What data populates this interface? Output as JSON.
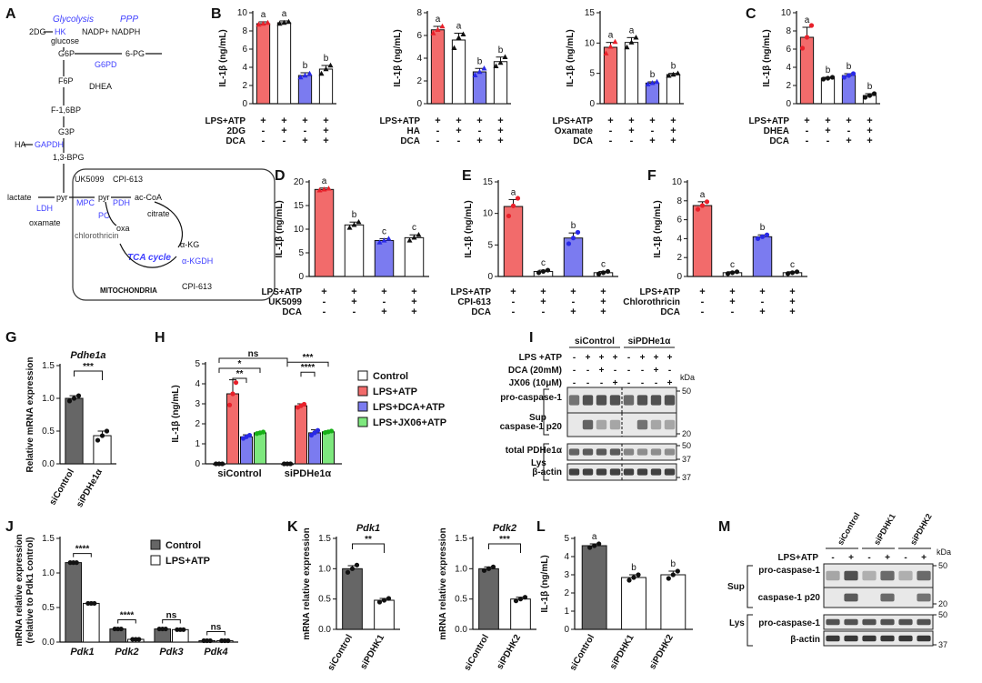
{
  "colors": {
    "red": "#f26b6b",
    "blue": "#7b7bf0",
    "green": "#7ee87e",
    "white": "#ffffff",
    "gray": "#666666",
    "dot_red": "#e8202a",
    "dot_blue": "#2929e6",
    "dot_green": "#16b016",
    "dot_black": "#111111",
    "pathway_blue": "#4040ff"
  },
  "panel_letters": [
    "A",
    "B",
    "C",
    "D",
    "E",
    "F",
    "G",
    "H",
    "I",
    "J",
    "K",
    "L",
    "M"
  ],
  "panelA": {
    "glycolysis": "Glycolysis",
    "ppp": "PPP",
    "items": {
      "twoDG": "2DG",
      "HK": "HK",
      "glucose": "glucose",
      "G6P": "G6P",
      "nadp": "NADP+ NADPH",
      "sixPG": "6-PG",
      "G6PD": "G6PD",
      "DHEA": "DHEA",
      "F6P": "F6P",
      "F16BP": "F-1,6BP",
      "G3P": "G3P",
      "HA": "HA",
      "GAPDH": "GAPDH",
      "BPG": "1,3-BPG",
      "UK5099": "UK5099",
      "CPI613a": "CPI-613",
      "MPC": "MPC",
      "PDH": "PDH",
      "lactate": "lactate",
      "pyr1": "pyr",
      "pyr2": "pyr",
      "acCoA": "ac-CoA",
      "LDH": "LDH",
      "oxamate": "oxamate",
      "PC": "PC",
      "citrate": "citrate",
      "oxa": "oxa",
      "chlorothricin": "chlorothricin",
      "tca": "TCA cycle",
      "aKG": "α-KG",
      "aKGDH": "α-KGDH",
      "CPI613b": "CPI-613",
      "mito": "MITOCHONDRIA"
    }
  },
  "chart_data": [
    {
      "panel": "B1",
      "type": "bar",
      "ylabel": "IL-1β (ng/mL)",
      "yticks": [
        0,
        2,
        4,
        6,
        8,
        10
      ],
      "ylim": [
        0,
        10
      ],
      "row_labels": [
        "LPS+ATP",
        "2DG",
        "DCA"
      ],
      "signs": [
        [
          "+",
          "+",
          "+",
          "+"
        ],
        [
          "-",
          "+",
          "-",
          "+"
        ],
        [
          "-",
          "-",
          "+",
          "+"
        ]
      ],
      "values": [
        8.8,
        8.9,
        3.1,
        3.8
      ],
      "errors": [
        0.2,
        0.2,
        0.3,
        0.4
      ],
      "colors": [
        "red",
        "white",
        "blue",
        "white"
      ],
      "letters": [
        "a",
        "a",
        "b",
        "b"
      ],
      "points": [
        [
          8.7,
          8.8,
          8.9
        ],
        [
          8.8,
          8.9,
          9.0
        ],
        [
          2.9,
          3.1,
          3.3
        ],
        [
          3.3,
          3.8,
          4.2
        ]
      ],
      "marker": "tri"
    },
    {
      "panel": "B2",
      "type": "bar",
      "ylabel": "IL-1β (ng/mL)",
      "yticks": [
        0,
        2,
        4,
        6,
        8
      ],
      "ylim": [
        0,
        8
      ],
      "row_labels": [
        "LPS+ATP",
        "HA",
        "DCA"
      ],
      "signs": [
        [
          "+",
          "+",
          "+",
          "+"
        ],
        [
          "-",
          "+",
          "-",
          "+"
        ],
        [
          "-",
          "-",
          "+",
          "+"
        ]
      ],
      "values": [
        6.5,
        5.6,
        2.8,
        3.7
      ],
      "errors": [
        0.3,
        0.6,
        0.3,
        0.4
      ],
      "colors": [
        "red",
        "white",
        "blue",
        "white"
      ],
      "letters": [
        "a",
        "a",
        "b",
        "b"
      ],
      "points": [
        [
          6.2,
          6.5,
          6.8
        ],
        [
          4.9,
          5.8,
          6.1
        ],
        [
          2.5,
          2.8,
          3.1
        ],
        [
          3.3,
          3.6,
          4.1
        ]
      ],
      "marker": "tri"
    },
    {
      "panel": "B3",
      "type": "bar",
      "ylabel": "IL-1β (ng/mL)",
      "yticks": [
        0,
        5,
        10,
        15
      ],
      "ylim": [
        0,
        15
      ],
      "row_labels": [
        "LPS+ATP",
        "Oxamate",
        "DCA"
      ],
      "signs": [
        [
          "+",
          "+",
          "+",
          "+"
        ],
        [
          "-",
          "+",
          "-",
          "+"
        ],
        [
          "-",
          "-",
          "+",
          "+"
        ]
      ],
      "values": [
        9.3,
        10.1,
        3.4,
        4.8
      ],
      "errors": [
        0.8,
        0.8,
        0.2,
        0.2
      ],
      "colors": [
        "red",
        "white",
        "blue",
        "white"
      ],
      "letters": [
        "a",
        "a",
        "b",
        "b"
      ],
      "points": [
        [
          8.3,
          9.4,
          10.2
        ],
        [
          9.3,
          10.1,
          10.9
        ],
        [
          3.2,
          3.4,
          3.6
        ],
        [
          4.6,
          4.8,
          5.0
        ]
      ],
      "marker": "tri"
    },
    {
      "panel": "C",
      "type": "bar",
      "ylabel": "IL-1β (ng/mL)",
      "yticks": [
        0,
        2,
        4,
        6,
        8,
        10
      ],
      "ylim": [
        0,
        10
      ],
      "row_labels": [
        "LPS+ATP",
        "DHEA",
        "DCA"
      ],
      "signs": [
        [
          "+",
          "+",
          "+",
          "+"
        ],
        [
          "-",
          "+",
          "-",
          "+"
        ],
        [
          "-",
          "-",
          "+",
          "+"
        ]
      ],
      "values": [
        7.3,
        2.8,
        3.1,
        0.9
      ],
      "errors": [
        1.1,
        0.1,
        0.2,
        0.2
      ],
      "colors": [
        "red",
        "white",
        "blue",
        "white"
      ],
      "letters": [
        "a",
        "b",
        "b",
        "b"
      ],
      "points": [
        [
          6.1,
          7.3,
          8.6
        ],
        [
          2.7,
          2.8,
          2.9
        ],
        [
          2.9,
          3.1,
          3.3
        ],
        [
          0.7,
          0.9,
          1.1
        ]
      ],
      "marker": "dot"
    },
    {
      "panel": "D",
      "type": "bar",
      "ylabel": "IL-1β (ng/mL)",
      "yticks": [
        0,
        5,
        10,
        15,
        20
      ],
      "ylim": [
        0,
        20
      ],
      "row_labels": [
        "LPS+ATP",
        "UK5099",
        "DCA"
      ],
      "signs": [
        [
          "+",
          "+",
          "+",
          "+"
        ],
        [
          "-",
          "+",
          "-",
          "+"
        ],
        [
          "-",
          "-",
          "+",
          "+"
        ]
      ],
      "values": [
        18.4,
        10.9,
        7.6,
        8.2
      ],
      "errors": [
        0.3,
        0.6,
        0.4,
        0.6
      ],
      "colors": [
        "red",
        "white",
        "blue",
        "white"
      ],
      "letters": [
        "a",
        "b",
        "c",
        "c"
      ],
      "points": [
        [
          18.2,
          18.4,
          18.6
        ],
        [
          10.3,
          10.9,
          11.5
        ],
        [
          7.2,
          7.6,
          8.0
        ],
        [
          7.6,
          8.2,
          8.8
        ]
      ],
      "marker": "tri"
    },
    {
      "panel": "E",
      "type": "bar",
      "ylabel": "IL-1β (ng/mL)",
      "yticks": [
        0,
        5,
        10,
        15
      ],
      "ylim": [
        0,
        15
      ],
      "row_labels": [
        "LPS+ATP",
        "CPI-613",
        "DCA"
      ],
      "signs": [
        [
          "+",
          "+",
          "+",
          "+"
        ],
        [
          "-",
          "+",
          "-",
          "+"
        ],
        [
          "-",
          "-",
          "+",
          "+"
        ]
      ],
      "values": [
        11.1,
        0.8,
        6.1,
        0.6
      ],
      "errors": [
        1.1,
        0.2,
        0.8,
        0.2
      ],
      "colors": [
        "red",
        "white",
        "blue",
        "white"
      ],
      "letters": [
        "a",
        "c",
        "b",
        "c"
      ],
      "points": [
        [
          9.6,
          11.2,
          12.4
        ],
        [
          0.6,
          0.8,
          1.0
        ],
        [
          5.2,
          6.1,
          7.0
        ],
        [
          0.4,
          0.6,
          0.8
        ]
      ],
      "marker": "dot"
    },
    {
      "panel": "F",
      "type": "bar",
      "ylabel": "IL-1β (ng/mL)",
      "yticks": [
        0,
        2,
        4,
        6,
        8,
        10
      ],
      "ylim": [
        0,
        10
      ],
      "row_labels": [
        "LPS+ATP",
        "Chlorothricin",
        "DCA"
      ],
      "signs": [
        [
          "+",
          "+",
          "+",
          "+"
        ],
        [
          "-",
          "+",
          "-",
          "+"
        ],
        [
          "-",
          "-",
          "+",
          "+"
        ]
      ],
      "values": [
        7.5,
        0.4,
        4.2,
        0.4
      ],
      "errors": [
        0.4,
        0.1,
        0.2,
        0.1
      ],
      "colors": [
        "red",
        "white",
        "blue",
        "white"
      ],
      "letters": [
        "a",
        "c",
        "b",
        "c"
      ],
      "points": [
        [
          7.1,
          7.5,
          7.9
        ],
        [
          0.3,
          0.4,
          0.5
        ],
        [
          4.0,
          4.2,
          4.4
        ],
        [
          0.3,
          0.4,
          0.5
        ]
      ],
      "marker": "dot"
    },
    {
      "panel": "G",
      "type": "bar",
      "title": "Pdhe1a",
      "ylabel": "Relative mRNA expression",
      "yticks": [
        0.0,
        0.5,
        1.0,
        1.5
      ],
      "ylim": [
        0,
        1.5
      ],
      "categories": [
        "siControl",
        "siPDHe1α"
      ],
      "values": [
        1.0,
        0.43
      ],
      "errors": [
        0.04,
        0.07
      ],
      "colors": [
        "gray",
        "white"
      ],
      "points": [
        [
          0.96,
          1.0,
          1.04
        ],
        [
          0.36,
          0.43,
          0.5
        ]
      ],
      "sig": "***"
    },
    {
      "panel": "H",
      "type": "bar",
      "ylabel": "IL-1β (ng/mL)",
      "yticks": [
        0,
        1,
        2,
        3,
        4,
        5
      ],
      "ylim": [
        0,
        5
      ],
      "categories": [
        "siControl",
        "siPDHe1α"
      ],
      "series": [
        {
          "name": "Control",
          "values": [
            0.0,
            0.0
          ]
        },
        {
          "name": "LPS+ATP",
          "values": [
            3.5,
            2.9
          ]
        },
        {
          "name": "LPS+DCA+ATP",
          "values": [
            1.35,
            1.55
          ]
        },
        {
          "name": "LPS+JX06+ATP",
          "values": [
            1.55,
            1.6
          ]
        }
      ],
      "errors": [
        [
          0,
          0
        ],
        [
          0.7,
          0.1
        ],
        [
          0.1,
          0.15
        ],
        [
          0.05,
          0.05
        ]
      ],
      "sig": [
        "**",
        "*",
        "ns",
        "****",
        "***"
      ]
    },
    {
      "panel": "J",
      "type": "bar",
      "ylabel": "mRNA relative expression",
      "ylabel2": "(relative to Pdk1 control)",
      "yticks": [
        0.0,
        0.5,
        1.0,
        1.5
      ],
      "ylim": [
        0,
        1.5
      ],
      "categories": [
        "Pdk1",
        "Pdk2",
        "Pdk3",
        "Pdk4"
      ],
      "series": [
        {
          "name": "Control",
          "values": [
            1.15,
            0.19,
            0.19,
            0.02
          ]
        },
        {
          "name": "LPS+ATP",
          "values": [
            0.56,
            0.04,
            0.18,
            0.02
          ]
        }
      ],
      "sig": [
        "****",
        "****",
        "ns",
        "ns"
      ]
    },
    {
      "panel": "K1",
      "type": "bar",
      "title": "Pdk1",
      "ylabel": "mRNA relative expression",
      "yticks": [
        0.0,
        0.5,
        1.0,
        1.5
      ],
      "ylim": [
        0,
        1.5
      ],
      "categories": [
        "siControl",
        "siPDHK1"
      ],
      "values": [
        1.0,
        0.48
      ],
      "errors": [
        0.05,
        0.03
      ],
      "colors": [
        "gray",
        "white"
      ],
      "points": [
        [
          0.94,
          1.0,
          1.06
        ],
        [
          0.45,
          0.48,
          0.51
        ]
      ],
      "sig": "**"
    },
    {
      "panel": "K2",
      "type": "bar",
      "title": "Pdk2",
      "ylabel": "mRNA relative expression",
      "yticks": [
        0.0,
        0.5,
        1.0,
        1.5
      ],
      "ylim": [
        0,
        1.5
      ],
      "categories": [
        "siControl",
        "siPDHK2"
      ],
      "values": [
        1.0,
        0.5
      ],
      "errors": [
        0.03,
        0.03
      ],
      "colors": [
        "gray",
        "white"
      ],
      "points": [
        [
          0.97,
          1.0,
          1.03
        ],
        [
          0.47,
          0.5,
          0.53
        ]
      ],
      "sig": "***"
    },
    {
      "panel": "L",
      "type": "bar",
      "ylabel": "IL-1β (ng/mL)",
      "yticks": [
        0,
        1,
        2,
        3,
        4,
        5
      ],
      "ylim": [
        0,
        5
      ],
      "categories": [
        "siControl",
        "siPDHK1",
        "siPDHK2"
      ],
      "values": [
        4.6,
        2.85,
        3.0
      ],
      "errors": [
        0.1,
        0.15,
        0.2
      ],
      "colors": [
        "gray",
        "white",
        "white"
      ],
      "letters": [
        "a",
        "b",
        "b"
      ],
      "points": [
        [
          4.5,
          4.6,
          4.7
        ],
        [
          2.7,
          2.85,
          3.0
        ],
        [
          2.8,
          3.0,
          3.2
        ]
      ]
    }
  ],
  "legendH": [
    "Control",
    "LPS+ATP",
    "LPS+DCA+ATP",
    "LPS+JX06+ATP"
  ],
  "legendJ": [
    "Control",
    "LPS+ATP"
  ],
  "blotI": {
    "groups": [
      "siControl",
      "siPDHe1α"
    ],
    "rows": [
      {
        "label": "LPS +ATP",
        "signs": [
          "-",
          "+",
          "+",
          "+",
          "-",
          "+",
          "+",
          "+"
        ]
      },
      {
        "label": "DCA (20mM)",
        "signs": [
          "-",
          "-",
          "+",
          "-",
          "-",
          "-",
          "+",
          "-"
        ]
      },
      {
        "label": "JX06 (10μM)",
        "signs": [
          "-",
          "-",
          "-",
          "+",
          "-",
          "-",
          "-",
          "+"
        ]
      }
    ],
    "kda": "kDa",
    "sup": "Sup",
    "lys": "Lys",
    "bands": [
      "pro-caspase-1",
      "caspase-1 p20",
      "total PDHe1α",
      "β-actin"
    ],
    "markers": [
      "50",
      "20",
      "50",
      "37",
      "37"
    ]
  },
  "blotM": {
    "groups": [
      "siControl",
      "siPDHK1",
      "siPDHK2"
    ],
    "row": {
      "label": "LPS+ATP",
      "signs": [
        "-",
        "+",
        "-",
        "+",
        "-",
        "+"
      ]
    },
    "kda": "kDa",
    "sup": "Sup",
    "lys": "Lys",
    "bands": [
      "pro-caspase-1",
      "caspase-1 p20",
      "pro-caspase-1",
      "β-actin"
    ],
    "markers": [
      "50",
      "20",
      "50",
      "37"
    ]
  }
}
